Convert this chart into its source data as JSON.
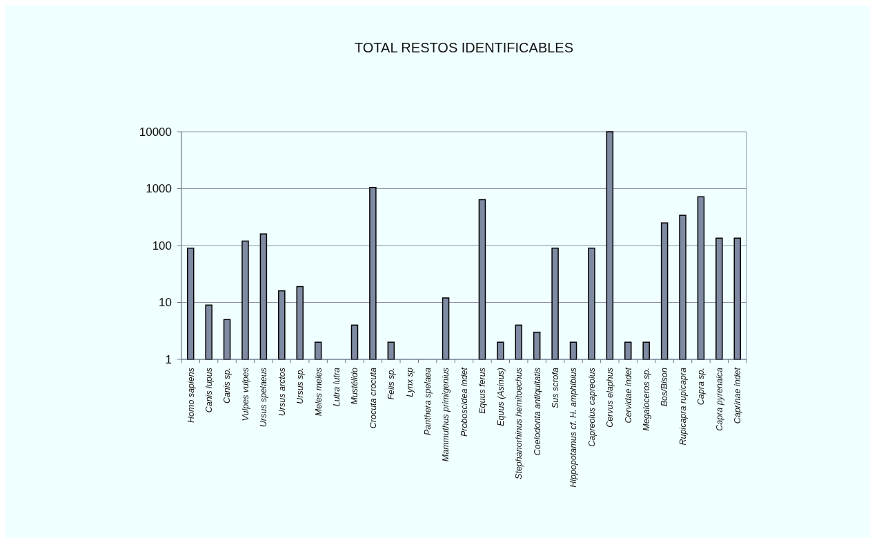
{
  "chart_data": {
    "type": "bar",
    "title": "TOTAL RESTOS IDENTIFICABLES",
    "categories": [
      "Homo sapiens",
      "Canis lupus",
      "Canis sp.",
      "Vulpes vulpes",
      "Ursus spelaeus",
      "Ursus arctos",
      "Ursus sp.",
      "Meles meles",
      "Lutra lutra",
      "Mustélido",
      "Crocuta crocuta",
      "Felis sp.",
      "Lynx sp",
      "Panthera spelaea",
      "Mammuthus primigenius",
      "Proboscidea indet",
      "Equus ferus",
      "Equus (Asinus)",
      "Stephanorhinus hemitoechus",
      "Coelodonta antiquitatis",
      "Sus scrofa",
      "Hippopotamus cf. H. amphibius",
      "Capreolus capreolus",
      "Cervus elaphus",
      "Cervidae indet",
      "Megaloceros sp.",
      "Bos/Bison",
      "Rupicapra rupicapra",
      "Capra sp.",
      "Capra pyrenaica",
      "Caprinae indet"
    ],
    "values": [
      90,
      9,
      5,
      120,
      160,
      16,
      19,
      2,
      1,
      4,
      1050,
      2,
      1,
      1,
      12,
      1,
      640,
      2,
      4,
      3,
      90,
      2,
      90,
      10000,
      2,
      2,
      250,
      340,
      720,
      135,
      135
    ],
    "color": "#7f8aa3",
    "log": true,
    "ylim": [
      1,
      10000
    ],
    "yticks": [
      1,
      10,
      100,
      1000,
      10000
    ],
    "grid": "y"
  }
}
